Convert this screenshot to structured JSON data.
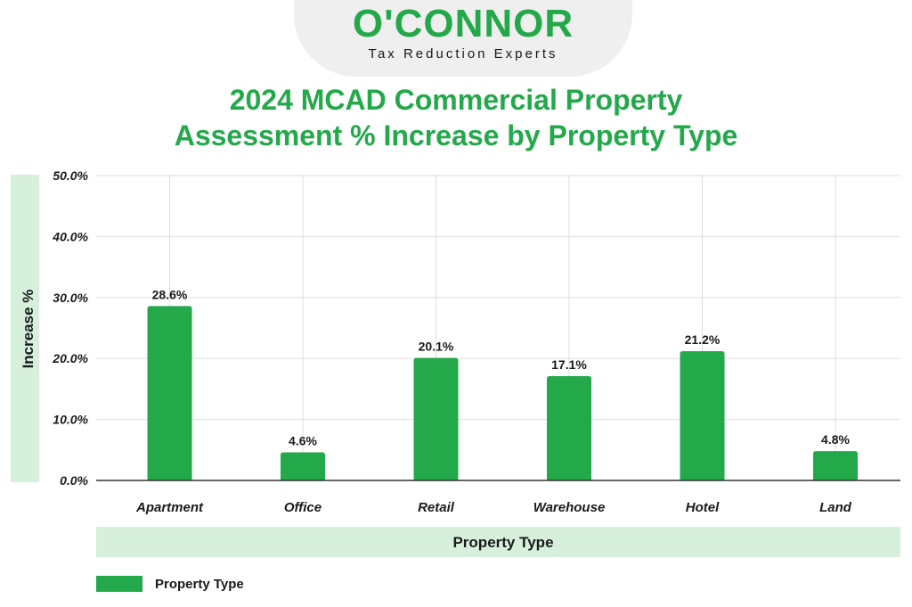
{
  "brand": {
    "name": "O'CONNOR",
    "tagline": "Tax Reduction Experts"
  },
  "colors": {
    "bar": "#23a84a",
    "title": "#23a84a",
    "label_band": "#d6f0dc",
    "grid": "#dddddd",
    "text": "#1a1a1a"
  },
  "chart_data": {
    "type": "bar",
    "title_lines": [
      "2024 MCAD Commercial Property",
      "Assessment % Increase by Property Type"
    ],
    "xlabel": "Property Type",
    "ylabel": "Increase %",
    "categories": [
      "Apartment",
      "Office",
      "Retail",
      "Warehouse",
      "Hotel",
      "Land"
    ],
    "series": [
      {
        "name": "Property Type",
        "values": [
          28.6,
          4.6,
          20.1,
          17.1,
          21.2,
          4.8
        ],
        "value_labels": [
          "28.6%",
          "4.6%",
          "20.1%",
          "17.1%",
          "21.2%",
          "4.8%"
        ]
      }
    ],
    "yticks": [
      0,
      10,
      20,
      30,
      40,
      50
    ],
    "ytick_labels": [
      "0.0%",
      "10.0%",
      "20.0%",
      "30.0%",
      "40.0%",
      "50.0%"
    ],
    "ylim": [
      0,
      50
    ],
    "grid": true,
    "legend": {
      "position": "bottom-left",
      "label": "Property Type"
    }
  }
}
